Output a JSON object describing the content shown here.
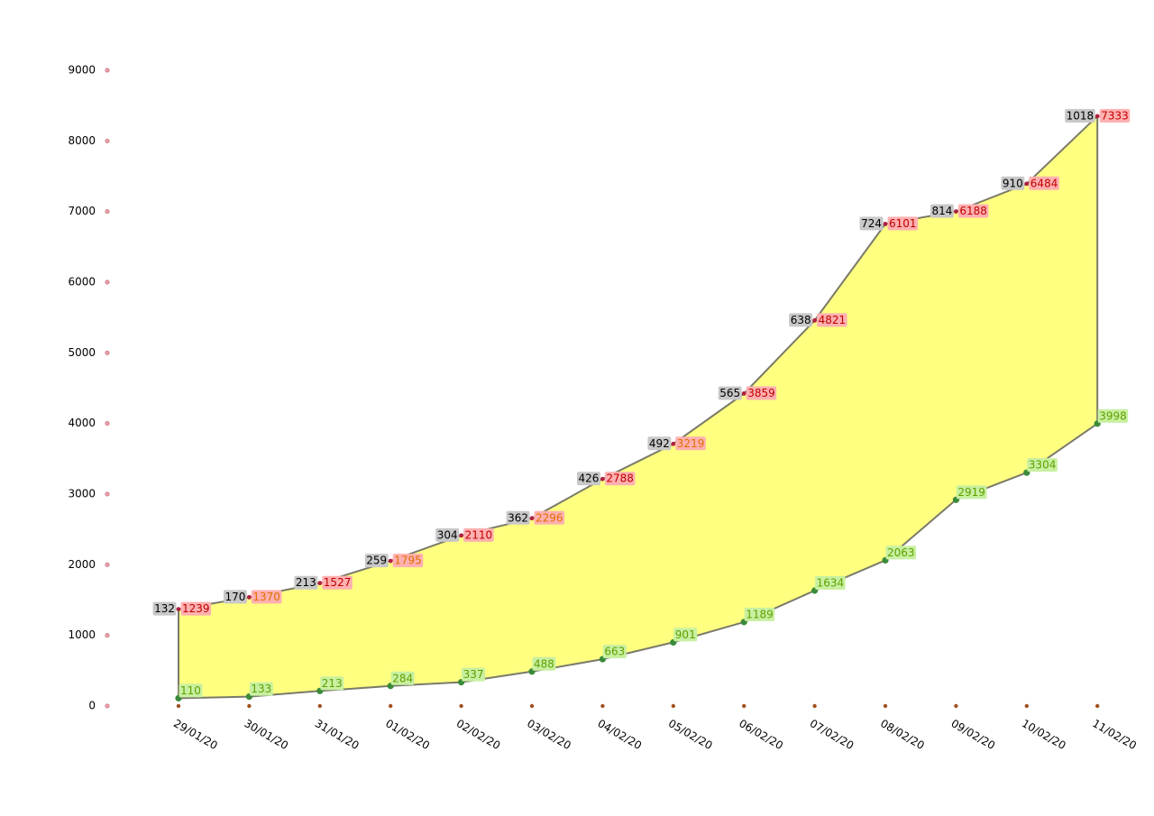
{
  "chart_data": {
    "type": "area",
    "title": "",
    "xlabel": "",
    "ylabel": "",
    "ylim": [
      0,
      9000
    ],
    "yticks": [
      0,
      1000,
      2000,
      3000,
      4000,
      5000,
      6000,
      7000,
      8000,
      9000
    ],
    "grid": false,
    "legend": "none",
    "categories": [
      "29/01/20",
      "30/01/20",
      "31/01/20",
      "01/02/20",
      "02/02/20",
      "03/02/20",
      "04/02/20",
      "05/02/20",
      "06/02/20",
      "07/02/20",
      "08/02/20",
      "09/02/20",
      "10/02/20",
      "11/02/20"
    ],
    "series": [
      {
        "role": "upper_gray_label",
        "values": [
          132,
          170,
          213,
          259,
          304,
          362,
          426,
          492,
          565,
          638,
          724,
          814,
          910,
          1018
        ]
      },
      {
        "role": "upper_total_point",
        "values": [
          1371,
          1540,
          1740,
          2054,
          2414,
          2658,
          3214,
          3711,
          4424,
          5459,
          6825,
          7002,
          7394,
          8351
        ]
      },
      {
        "role": "upper_colored_label",
        "values": [
          1239,
          1370,
          1527,
          1795,
          2110,
          2296,
          2788,
          3219,
          3859,
          4821,
          6101,
          6188,
          6484,
          7333
        ]
      },
      {
        "role": "lower_green",
        "values": [
          110,
          133,
          213,
          284,
          337,
          488,
          663,
          901,
          1189,
          1634,
          2063,
          2919,
          3304,
          3998
        ]
      }
    ],
    "colors": {
      "fill": "#ffff80",
      "outline": "#7a7a6a",
      "axis_dot": "#e8a0a8",
      "x_dot": "#a05020",
      "upper_dot": "#b02040",
      "gray_label_bg": "#c8c8c8",
      "red_label_bg": "#ffb0b0",
      "red_label_text": "#c00000",
      "orange_label_text": "#e07000",
      "green_label_bg": "#c8f0a0",
      "green_label_text": "#60a000",
      "green_dot": "#3a8a3a"
    }
  }
}
